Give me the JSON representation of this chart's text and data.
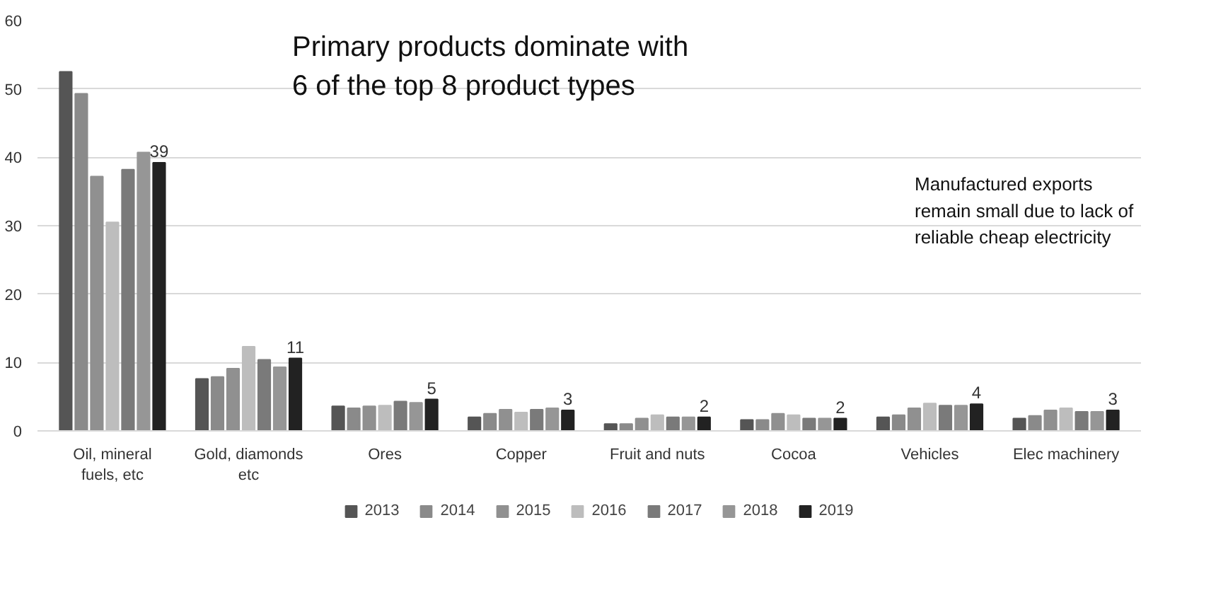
{
  "chart_data": {
    "type": "bar",
    "categories": [
      "Oil, mineral\nfuels, etc",
      "Gold, diamonds\netc",
      "Ores",
      "Copper",
      "Fruit and nuts",
      "Cocoa",
      "Vehicles",
      "Elec machinery"
    ],
    "series": [
      {
        "name": "2013",
        "color": "#555555",
        "values": [
          52.5,
          7.6,
          3.6,
          2.0,
          1.0,
          1.6,
          2.0,
          1.8
        ]
      },
      {
        "name": "2014",
        "color": "#8a8a8a",
        "values": [
          49.3,
          7.9,
          3.3,
          2.5,
          1.0,
          1.6,
          2.3,
          2.2
        ]
      },
      {
        "name": "2015",
        "color": "#909090",
        "values": [
          37.2,
          9.1,
          3.6,
          3.1,
          1.8,
          2.5,
          3.3,
          3.0
        ]
      },
      {
        "name": "2016",
        "color": "#bdbdbd",
        "values": [
          30.5,
          12.3,
          3.7,
          2.7,
          2.3,
          2.3,
          4.0,
          3.3
        ]
      },
      {
        "name": "2017",
        "color": "#7a7a7a",
        "values": [
          38.2,
          10.4,
          4.3,
          3.1,
          2.0,
          1.8,
          3.7,
          2.8
        ]
      },
      {
        "name": "2018",
        "color": "#969696",
        "values": [
          40.7,
          9.3,
          4.1,
          3.3,
          2.0,
          1.8,
          3.7,
          2.8
        ]
      },
      {
        "name": "2019",
        "color": "#222222",
        "values": [
          39.2,
          10.6,
          4.6,
          3.0,
          2.0,
          1.8,
          3.9,
          3.0
        ],
        "value_labels": [
          "39",
          "11",
          "5",
          "3",
          "2",
          "2",
          "4",
          "3"
        ]
      }
    ],
    "annotations": [
      "Primary products dominate with\n6 of the top 8 product types",
      "Manufactured exports\nremain small due to lack of\nreliable cheap electricity"
    ],
    "ylim": [
      0,
      60
    ],
    "yticks": [
      0,
      10,
      20,
      30,
      40,
      50,
      60
    ],
    "grid": "y",
    "legend": "bottom"
  }
}
